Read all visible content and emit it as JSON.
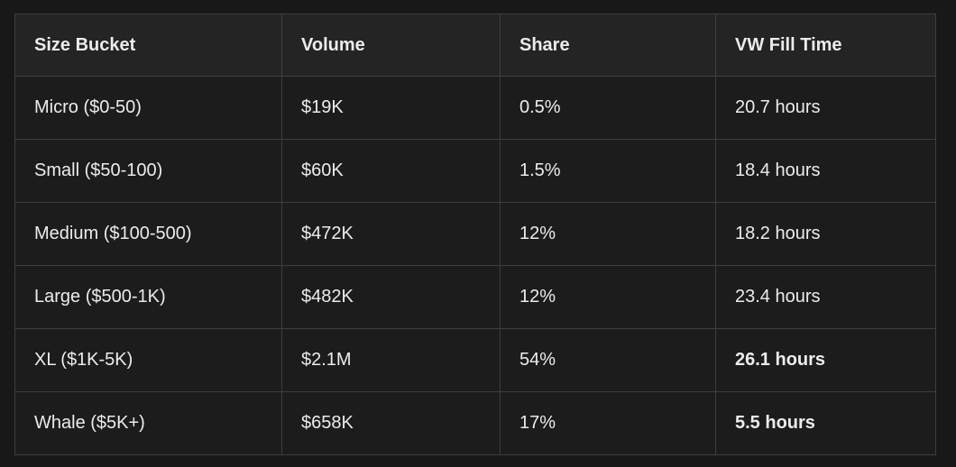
{
  "chart_data": {
    "type": "table",
    "columns": [
      "Size Bucket",
      "Volume",
      "Share",
      "VW Fill Time"
    ],
    "rows": [
      [
        "Micro ($0-50)",
        "$19K",
        "0.5%",
        "20.7 hours"
      ],
      [
        "Small ($50-100)",
        "$60K",
        "1.5%",
        "18.4 hours"
      ],
      [
        "Medium ($100-500)",
        "$472K",
        "12%",
        "18.2 hours"
      ],
      [
        "Large ($500-1K)",
        "$482K",
        "12%",
        "23.4 hours"
      ],
      [
        "XL ($1K-5K)",
        "$2.1M",
        "54%",
        "26.1 hours"
      ],
      [
        "Whale ($5K+)",
        "$658K",
        "17%",
        "5.5 hours"
      ]
    ],
    "emphasis": [
      {
        "row": 4,
        "col": 3,
        "bold": true
      },
      {
        "row": 5,
        "col": 3,
        "bold": true
      }
    ],
    "layout_hints": {
      "header_background": "lighter than body rows",
      "grid": "full 1px borders",
      "theme": "dark"
    }
  },
  "colors": {
    "page_bg": "#181818",
    "cell_bg": "#1c1c1d",
    "header_bg": "#242425",
    "border": "#3e3e40",
    "text": "#ececec"
  }
}
